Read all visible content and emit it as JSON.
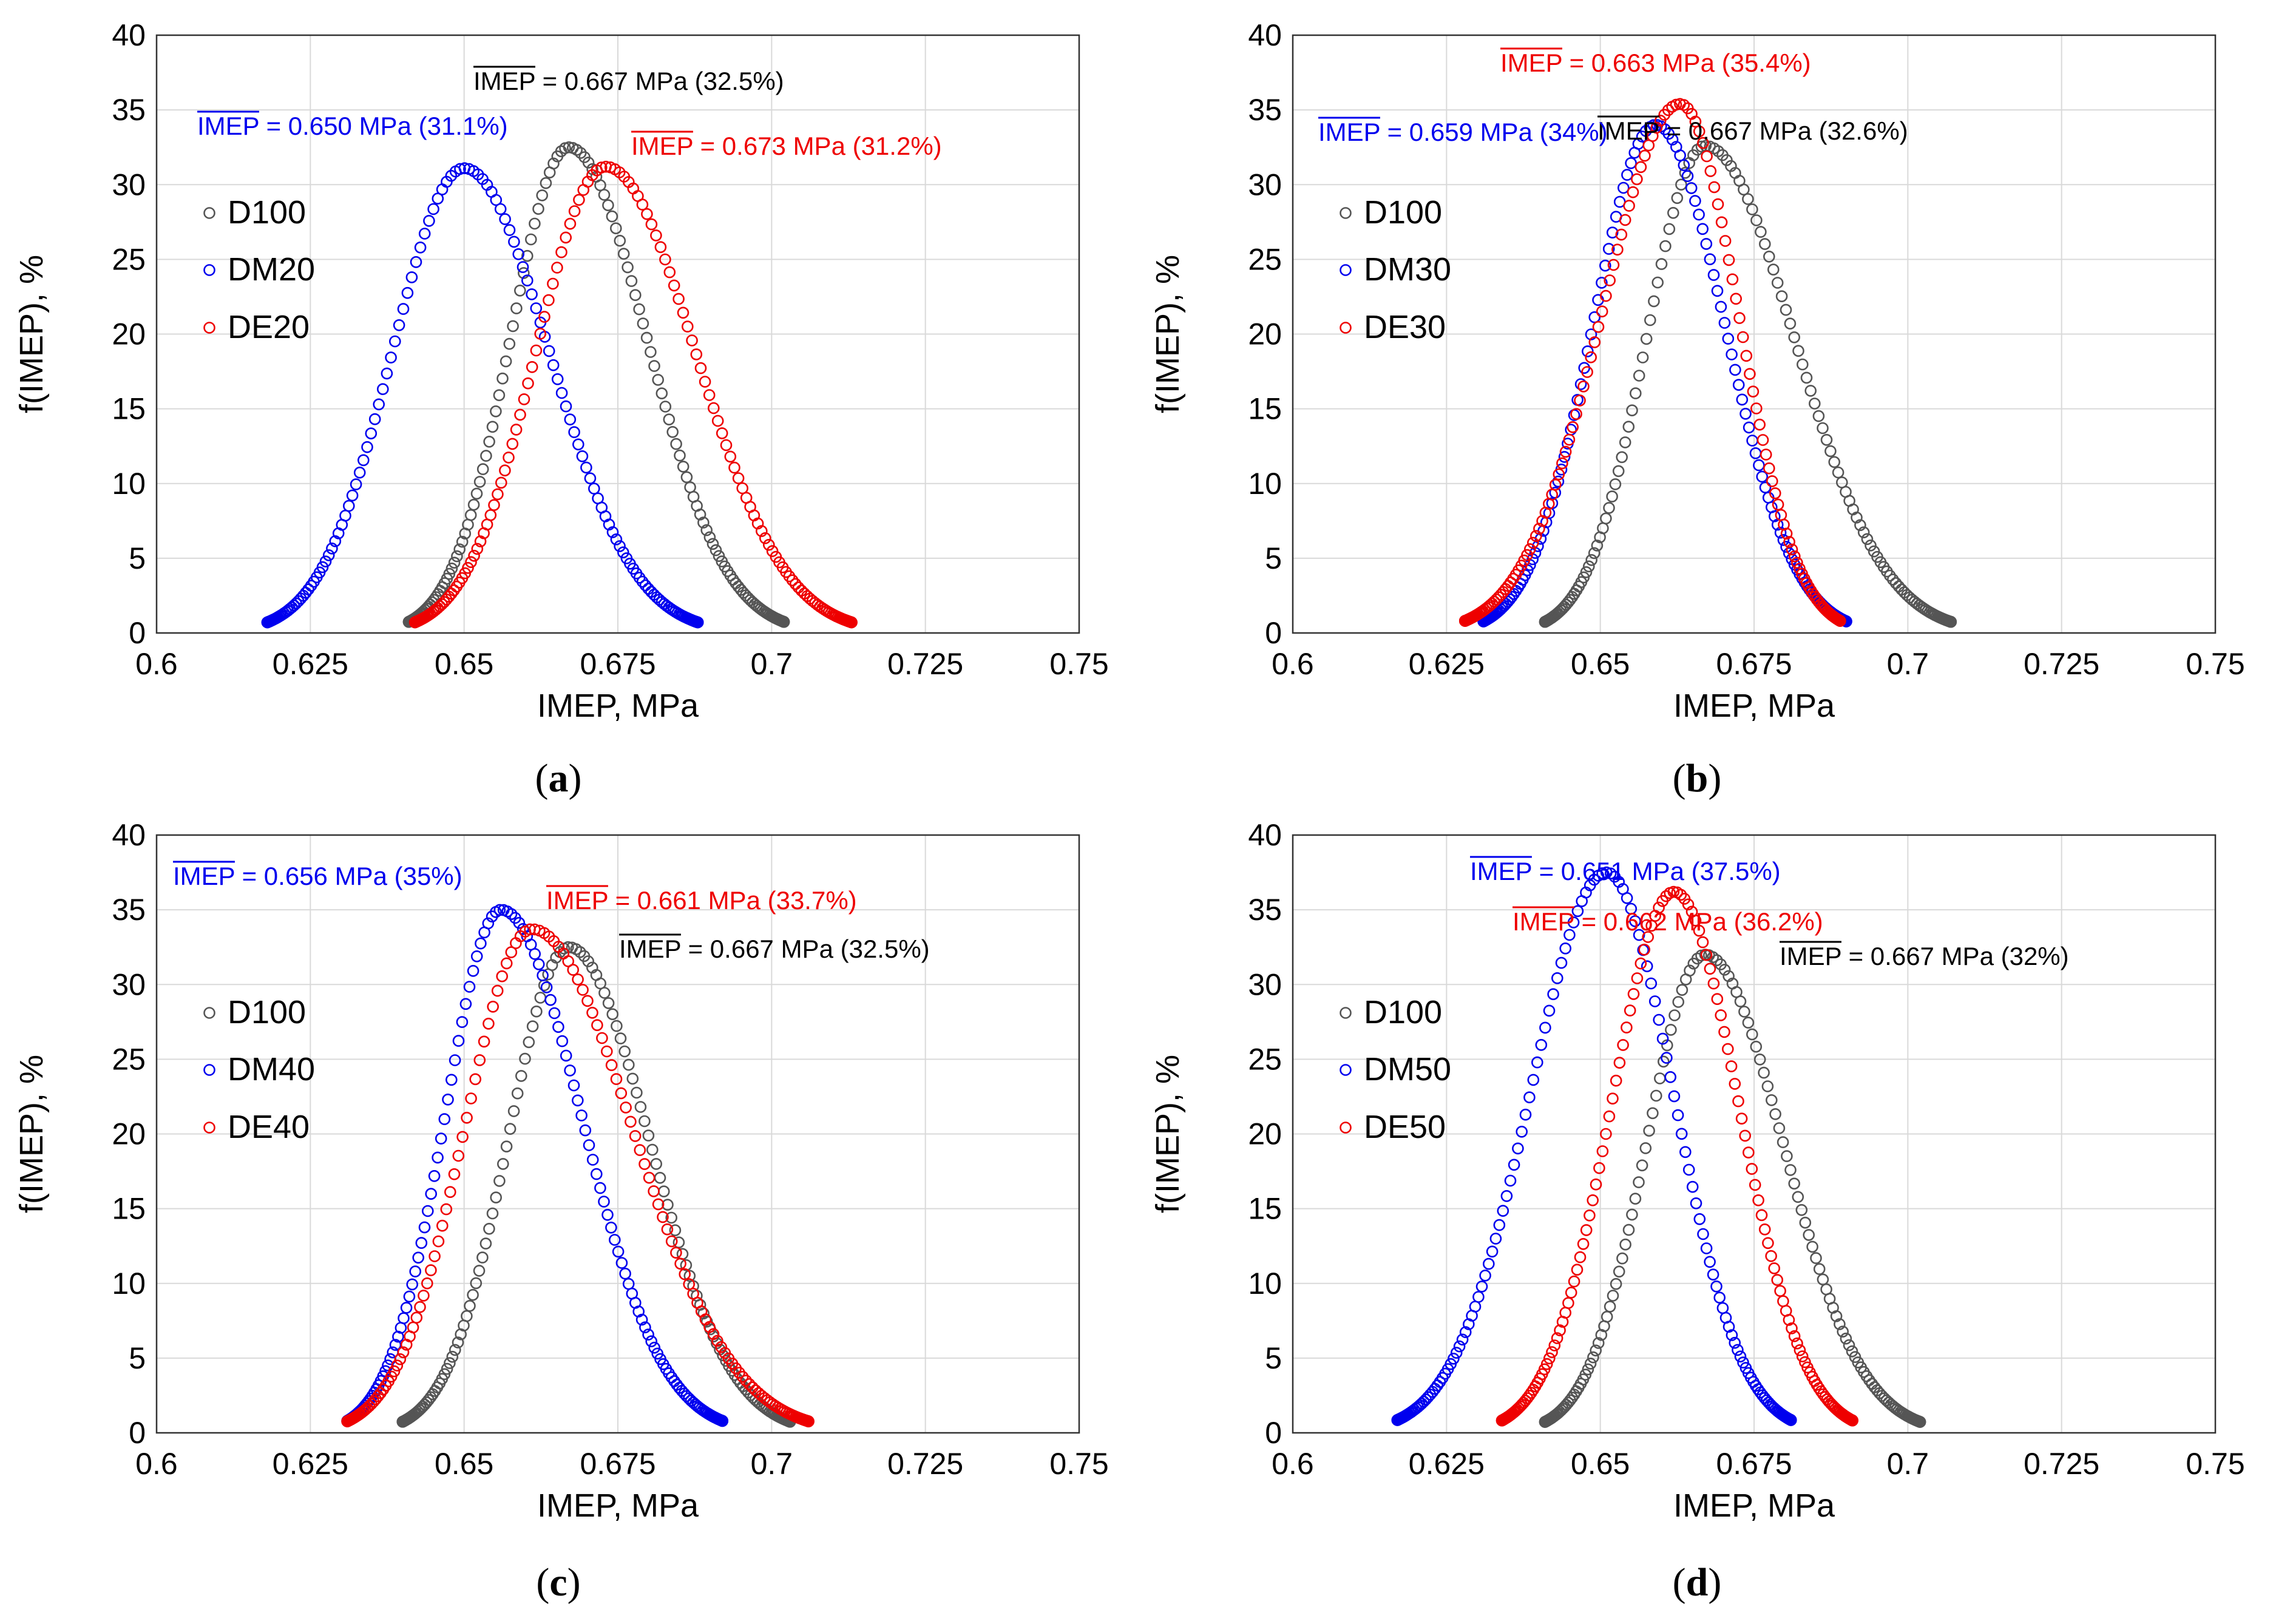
{
  "colors": {
    "D100": "#555555",
    "DM": "#0000ee",
    "DE": "#ee0000",
    "grid": "#d9d9d9",
    "axis": "#333333"
  },
  "chart_data": [
    {
      "type": "scatter",
      "panel": "a",
      "caption": "(a)",
      "caption_letter": "a",
      "xlabel": "IMEP, MPa",
      "ylabel": "f(IMEP), %",
      "xlim": [
        0.6,
        0.75
      ],
      "ylim": [
        0,
        40
      ],
      "xticks": [
        "0.6",
        "0.625",
        "0.65",
        "0.675",
        "0.7",
        "0.725",
        "0.75"
      ],
      "yticks": [
        "0",
        "5",
        "10",
        "15",
        "20",
        "25",
        "30",
        "35",
        "40"
      ],
      "legend": [
        "D100",
        "DM20",
        "DE20"
      ],
      "series": [
        {
          "name": "D100",
          "color": "D100",
          "mean": 0.667,
          "peak": 32.5,
          "xmin": 0.641,
          "xmax": 0.702
        },
        {
          "name": "DM20",
          "color": "DM",
          "mean": 0.65,
          "peak": 31.1,
          "xmin": 0.618,
          "xmax": 0.688
        },
        {
          "name": "DE20",
          "color": "DE",
          "mean": 0.673,
          "peak": 31.2,
          "xmin": 0.642,
          "xmax": 0.713
        }
      ],
      "annotations": [
        {
          "series": "D100",
          "bar": "IMEP",
          "rest": " = 0.667 MPa (32.5%)",
          "color": "#000000"
        },
        {
          "series": "DM20",
          "bar": "IMEP",
          "rest": " = 0.650 MPa (31.1%)",
          "color": "#0000ee"
        },
        {
          "series": "DE20",
          "bar": "IMEP",
          "rest": " = 0.673 MPa (31.2%)",
          "color": "#ee0000"
        }
      ]
    },
    {
      "type": "scatter",
      "panel": "b",
      "caption": "(b)",
      "caption_letter": "b",
      "xlabel": "IMEP, MPa",
      "ylabel": "f(IMEP), %",
      "xlim": [
        0.6,
        0.75
      ],
      "ylim": [
        0,
        40
      ],
      "xticks": [
        "0.6",
        "0.625",
        "0.65",
        "0.675",
        "0.7",
        "0.725",
        "0.75"
      ],
      "yticks": [
        "0",
        "5",
        "10",
        "15",
        "20",
        "25",
        "30",
        "35",
        "40"
      ],
      "legend": [
        "D100",
        "DM30",
        "DE30"
      ],
      "series": [
        {
          "name": "D100",
          "color": "D100",
          "mean": 0.667,
          "peak": 32.6,
          "xmin": 0.641,
          "xmax": 0.707
        },
        {
          "name": "DM30",
          "color": "DM",
          "mean": 0.659,
          "peak": 34.0,
          "xmin": 0.631,
          "xmax": 0.69
        },
        {
          "name": "DE30",
          "color": "DE",
          "mean": 0.663,
          "peak": 35.4,
          "xmin": 0.628,
          "xmax": 0.689
        }
      ],
      "annotations": [
        {
          "series": "D100",
          "bar": "IMEP",
          "rest": " = 0.667 MPa (32.6%)",
          "color": "#000000"
        },
        {
          "series": "DM30",
          "bar": "IMEP",
          "rest": " = 0.659 MPa (34%)",
          "color": "#0000ee"
        },
        {
          "series": "DE30",
          "bar": "IMEP",
          "rest": " = 0.663 MPa (35.4%)",
          "color": "#ee0000"
        }
      ]
    },
    {
      "type": "scatter",
      "panel": "c",
      "caption": "(c)",
      "caption_letter": "c",
      "xlabel": "IMEP, MPa",
      "ylabel": "f(IMEP), %",
      "xlim": [
        0.6,
        0.75
      ],
      "ylim": [
        0,
        40
      ],
      "xticks": [
        "0.6",
        "0.625",
        "0.65",
        "0.675",
        "0.7",
        "0.725",
        "0.75"
      ],
      "yticks": [
        "0",
        "5",
        "10",
        "15",
        "20",
        "25",
        "30",
        "35",
        "40"
      ],
      "legend": [
        "D100",
        "DM40",
        "DE40"
      ],
      "series": [
        {
          "name": "D100",
          "color": "D100",
          "mean": 0.667,
          "peak": 32.5,
          "xmin": 0.64,
          "xmax": 0.703
        },
        {
          "name": "DM40",
          "color": "DM",
          "mean": 0.656,
          "peak": 35.0,
          "xmin": 0.631,
          "xmax": 0.692
        },
        {
          "name": "DE40",
          "color": "DE",
          "mean": 0.661,
          "peak": 33.7,
          "xmin": 0.631,
          "xmax": 0.706
        }
      ],
      "annotations": [
        {
          "series": "D100",
          "bar": "IMEP",
          "rest": " = 0.667 MPa (32.5%)",
          "color": "#000000"
        },
        {
          "series": "DM40",
          "bar": "IMEP",
          "rest": " = 0.656 MPa (35%)",
          "color": "#0000ee"
        },
        {
          "series": "DE40",
          "bar": "IMEP",
          "rest": " = 0.661 MPa (33.7%)",
          "color": "#ee0000"
        }
      ]
    },
    {
      "type": "scatter",
      "panel": "d",
      "caption": "(d)",
      "caption_letter": "d",
      "xlabel": "IMEP, MPa",
      "ylabel": "f(IMEP), %",
      "xlim": [
        0.6,
        0.75
      ],
      "ylim": [
        0,
        40
      ],
      "xticks": [
        "0.6",
        "0.625",
        "0.65",
        "0.675",
        "0.7",
        "0.725",
        "0.75"
      ],
      "yticks": [
        "0",
        "5",
        "10",
        "15",
        "20",
        "25",
        "30",
        "35",
        "40"
      ],
      "legend": [
        "D100",
        "DM50",
        "DE50"
      ],
      "series": [
        {
          "name": "D100",
          "color": "D100",
          "mean": 0.667,
          "peak": 32.0,
          "xmin": 0.641,
          "xmax": 0.702
        },
        {
          "name": "DM50",
          "color": "DM",
          "mean": 0.651,
          "peak": 37.5,
          "xmin": 0.617,
          "xmax": 0.681
        },
        {
          "name": "DE50",
          "color": "DE",
          "mean": 0.662,
          "peak": 36.2,
          "xmin": 0.634,
          "xmax": 0.691
        }
      ],
      "annotations": [
        {
          "series": "D100",
          "bar": "IMEP",
          "rest": " = 0.667 MPa (32%)",
          "color": "#000000"
        },
        {
          "series": "DM50",
          "bar": "IMEP",
          "rest": " = 0.651 MPa (37.5%)",
          "color": "#0000ee"
        },
        {
          "series": "DE50",
          "bar": "IMEP",
          "rest": " = 0.662 MPa (36.2%)",
          "color": "#ee0000"
        }
      ]
    }
  ]
}
